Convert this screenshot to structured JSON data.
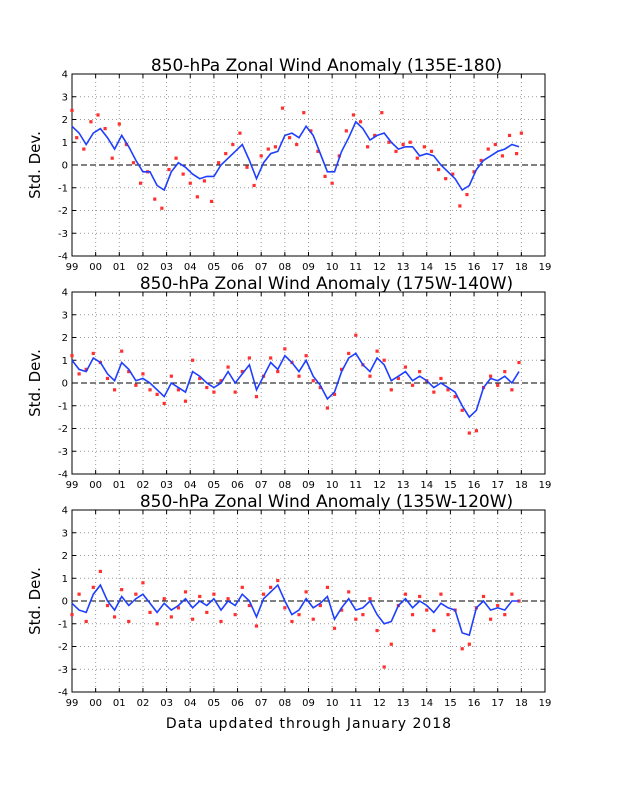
{
  "footer": "Data updated through January 2018",
  "colors": {
    "line": "#1f3fff",
    "points": "#ff3030",
    "grid": "#999999",
    "zero": "#000000"
  },
  "chart_data": [
    {
      "type": "scatter",
      "title": "850-hPa Zonal Wind Anomaly (135E-180)",
      "ylabel": "Std. Dev.",
      "xlabel": "",
      "xlim": [
        1999,
        2019
      ],
      "ylim": [
        -4,
        4
      ],
      "grid": true,
      "xticks": [
        "99",
        "00",
        "01",
        "02",
        "03",
        "04",
        "05",
        "06",
        "07",
        "08",
        "09",
        "10",
        "11",
        "12",
        "13",
        "14",
        "15",
        "16",
        "17",
        "18",
        "19"
      ],
      "yticks": [
        "-4",
        "-3",
        "-2",
        "-1",
        "0",
        "1",
        "2",
        "3",
        "4"
      ],
      "series": [
        {
          "kind": "points",
          "x": [
            1999.0,
            1999.2,
            1999.5,
            1999.8,
            2000.1,
            2000.4,
            2000.7,
            2001.0,
            2001.3,
            2001.6,
            2001.9,
            2002.2,
            2002.5,
            2002.8,
            2003.1,
            2003.4,
            2003.7,
            2004.0,
            2004.3,
            2004.6,
            2004.9,
            2005.2,
            2005.5,
            2005.8,
            2006.1,
            2006.4,
            2006.7,
            2007.0,
            2007.3,
            2007.6,
            2007.9,
            2008.2,
            2008.5,
            2008.8,
            2009.1,
            2009.4,
            2009.7,
            2010.0,
            2010.3,
            2010.6,
            2010.9,
            2011.2,
            2011.5,
            2011.8,
            2012.1,
            2012.4,
            2012.7,
            2013.0,
            2013.3,
            2013.6,
            2013.9,
            2014.2,
            2014.5,
            2014.8,
            2015.1,
            2015.4,
            2015.7,
            2016.0,
            2016.3,
            2016.6,
            2016.9,
            2017.2,
            2017.5,
            2017.8,
            2018.0
          ],
          "y": [
            2.4,
            1.2,
            0.7,
            1.9,
            2.2,
            1.6,
            0.3,
            1.8,
            0.9,
            0.1,
            -0.8,
            -0.3,
            -1.5,
            -1.9,
            -0.2,
            0.3,
            -0.4,
            -0.8,
            -1.4,
            -0.7,
            -1.6,
            0.1,
            0.5,
            0.9,
            1.4,
            -0.1,
            -0.9,
            0.4,
            0.7,
            0.8,
            2.5,
            1.2,
            0.9,
            2.3,
            1.5,
            0.6,
            -0.5,
            -0.8,
            0.4,
            1.5,
            2.2,
            1.9,
            0.8,
            1.3,
            2.3,
            1.0,
            0.6,
            0.9,
            1.0,
            0.3,
            0.8,
            0.6,
            -0.2,
            -0.6,
            -0.4,
            -1.8,
            -1.3,
            -0.3,
            0.2,
            0.7,
            0.9,
            0.4,
            1.3,
            0.5,
            1.4
          ]
        },
        {
          "kind": "line",
          "x": [
            1999.0,
            1999.3,
            1999.6,
            1999.9,
            2000.2,
            2000.5,
            2000.8,
            2001.1,
            2001.4,
            2001.7,
            2002.0,
            2002.3,
            2002.6,
            2002.9,
            2003.2,
            2003.5,
            2003.8,
            2004.1,
            2004.4,
            2004.7,
            2005.0,
            2005.3,
            2005.6,
            2005.9,
            2006.2,
            2006.5,
            2006.8,
            2007.1,
            2007.4,
            2007.7,
            2008.0,
            2008.3,
            2008.6,
            2008.9,
            2009.2,
            2009.5,
            2009.8,
            2010.1,
            2010.4,
            2010.7,
            2011.0,
            2011.3,
            2011.6,
            2011.9,
            2012.2,
            2012.5,
            2012.8,
            2013.1,
            2013.4,
            2013.7,
            2014.0,
            2014.3,
            2014.6,
            2014.9,
            2015.2,
            2015.5,
            2015.8,
            2016.1,
            2016.4,
            2016.7,
            2017.0,
            2017.3,
            2017.6,
            2017.9
          ],
          "y": [
            1.7,
            1.4,
            0.9,
            1.4,
            1.6,
            1.2,
            0.7,
            1.3,
            0.8,
            0.2,
            -0.3,
            -0.3,
            -0.9,
            -1.1,
            -0.3,
            0.1,
            -0.1,
            -0.4,
            -0.6,
            -0.5,
            -0.5,
            0.0,
            0.3,
            0.6,
            0.9,
            0.2,
            -0.6,
            0.1,
            0.5,
            0.6,
            1.3,
            1.4,
            1.2,
            1.7,
            1.3,
            0.5,
            -0.3,
            -0.3,
            0.6,
            1.2,
            1.9,
            1.6,
            1.1,
            1.3,
            1.4,
            1.0,
            0.7,
            0.8,
            0.8,
            0.4,
            0.5,
            0.4,
            0.0,
            -0.3,
            -0.6,
            -1.1,
            -0.9,
            -0.2,
            0.2,
            0.4,
            0.6,
            0.7,
            0.9,
            0.8
          ]
        }
      ]
    },
    {
      "type": "scatter",
      "title": "850-hPa Zonal Wind Anomaly (175W-140W)",
      "ylabel": "Std. Dev.",
      "xlabel": "",
      "xlim": [
        1999,
        2019
      ],
      "ylim": [
        -4,
        4
      ],
      "grid": true,
      "xticks": [
        "99",
        "00",
        "01",
        "02",
        "03",
        "04",
        "05",
        "06",
        "07",
        "08",
        "09",
        "10",
        "11",
        "12",
        "13",
        "14",
        "15",
        "16",
        "17",
        "18",
        "19"
      ],
      "yticks": [
        "-4",
        "-3",
        "-2",
        "-1",
        "0",
        "1",
        "2",
        "3",
        "4"
      ],
      "series": [
        {
          "kind": "points",
          "x": [
            1999.0,
            1999.3,
            1999.6,
            1999.9,
            2000.2,
            2000.5,
            2000.8,
            2001.1,
            2001.4,
            2001.7,
            2002.0,
            2002.3,
            2002.6,
            2002.9,
            2003.2,
            2003.5,
            2003.8,
            2004.1,
            2004.4,
            2004.7,
            2005.0,
            2005.3,
            2005.6,
            2005.9,
            2006.2,
            2006.5,
            2006.8,
            2007.1,
            2007.4,
            2007.7,
            2008.0,
            2008.3,
            2008.6,
            2008.9,
            2009.2,
            2009.5,
            2009.8,
            2010.1,
            2010.4,
            2010.7,
            2011.0,
            2011.3,
            2011.6,
            2011.9,
            2012.2,
            2012.5,
            2012.8,
            2013.1,
            2013.4,
            2013.7,
            2014.0,
            2014.3,
            2014.6,
            2014.9,
            2015.2,
            2015.5,
            2015.8,
            2016.1,
            2016.4,
            2016.7,
            2017.0,
            2017.3,
            2017.6,
            2017.9
          ],
          "y": [
            1.2,
            0.4,
            0.6,
            1.3,
            0.9,
            0.2,
            -0.3,
            1.4,
            0.5,
            -0.1,
            0.4,
            -0.3,
            -0.5,
            -0.9,
            0.3,
            -0.3,
            -0.8,
            1.0,
            0.2,
            -0.2,
            -0.4,
            0.1,
            0.7,
            -0.4,
            0.5,
            1.1,
            -0.6,
            0.3,
            1.1,
            0.5,
            1.5,
            0.9,
            0.3,
            1.2,
            0.1,
            -0.2,
            -1.1,
            -0.5,
            0.6,
            1.3,
            2.1,
            0.8,
            0.3,
            1.4,
            1.0,
            -0.3,
            0.2,
            0.7,
            -0.1,
            0.5,
            0.1,
            -0.4,
            0.2,
            -0.3,
            -0.6,
            -1.2,
            -2.2,
            -2.1,
            -0.2,
            0.3,
            -0.1,
            0.5,
            -0.3,
            0.9
          ]
        },
        {
          "kind": "line",
          "x": [
            1999.0,
            1999.3,
            1999.6,
            1999.9,
            2000.2,
            2000.5,
            2000.8,
            2001.1,
            2001.4,
            2001.7,
            2002.0,
            2002.3,
            2002.6,
            2002.9,
            2003.2,
            2003.5,
            2003.8,
            2004.1,
            2004.4,
            2004.7,
            2005.0,
            2005.3,
            2005.6,
            2005.9,
            2006.2,
            2006.5,
            2006.8,
            2007.1,
            2007.4,
            2007.7,
            2008.0,
            2008.3,
            2008.6,
            2008.9,
            2009.2,
            2009.5,
            2009.8,
            2010.1,
            2010.4,
            2010.7,
            2011.0,
            2011.3,
            2011.6,
            2011.9,
            2012.2,
            2012.5,
            2012.8,
            2013.1,
            2013.4,
            2013.7,
            2014.0,
            2014.3,
            2014.6,
            2014.9,
            2015.2,
            2015.5,
            2015.8,
            2016.1,
            2016.4,
            2016.7,
            2017.0,
            2017.3,
            2017.6,
            2017.9
          ],
          "y": [
            1.0,
            0.6,
            0.5,
            1.1,
            0.9,
            0.4,
            0.1,
            0.9,
            0.6,
            0.1,
            0.2,
            0.0,
            -0.3,
            -0.6,
            0.0,
            -0.2,
            -0.4,
            0.5,
            0.3,
            0.0,
            -0.2,
            0.0,
            0.5,
            0.0,
            0.4,
            0.8,
            -0.3,
            0.3,
            0.9,
            0.6,
            1.2,
            0.9,
            0.5,
            1.0,
            0.3,
            -0.1,
            -0.7,
            -0.4,
            0.5,
            1.1,
            1.3,
            0.8,
            0.5,
            1.1,
            0.8,
            0.1,
            0.3,
            0.5,
            0.1,
            0.3,
            0.1,
            -0.2,
            0.0,
            -0.2,
            -0.4,
            -1.0,
            -1.5,
            -1.2,
            -0.2,
            0.2,
            0.1,
            0.3,
            0.0,
            0.5
          ]
        }
      ]
    },
    {
      "type": "scatter",
      "title": "850-hPa Zonal Wind Anomaly (135W-120W)",
      "ylabel": "Std. Dev.",
      "xlabel": "",
      "xlim": [
        1999,
        2019
      ],
      "ylim": [
        -4,
        4
      ],
      "grid": true,
      "xticks": [
        "99",
        "00",
        "01",
        "02",
        "03",
        "04",
        "05",
        "06",
        "07",
        "08",
        "09",
        "10",
        "11",
        "12",
        "13",
        "14",
        "15",
        "16",
        "17",
        "18",
        "19"
      ],
      "yticks": [
        "-4",
        "-3",
        "-2",
        "-1",
        "0",
        "1",
        "2",
        "3",
        "4"
      ],
      "series": [
        {
          "kind": "points",
          "x": [
            1999.0,
            1999.3,
            1999.6,
            1999.9,
            2000.2,
            2000.5,
            2000.8,
            2001.1,
            2001.4,
            2001.7,
            2002.0,
            2002.3,
            2002.6,
            2002.9,
            2003.2,
            2003.5,
            2003.8,
            2004.1,
            2004.4,
            2004.7,
            2005.0,
            2005.3,
            2005.6,
            2005.9,
            2006.2,
            2006.5,
            2006.8,
            2007.1,
            2007.4,
            2007.7,
            2008.0,
            2008.3,
            2008.6,
            2008.9,
            2009.2,
            2009.5,
            2009.8,
            2010.1,
            2010.4,
            2010.7,
            2011.0,
            2011.3,
            2011.6,
            2011.9,
            2012.2,
            2012.5,
            2012.8,
            2013.1,
            2013.4,
            2013.7,
            2014.0,
            2014.3,
            2014.6,
            2014.9,
            2015.2,
            2015.5,
            2015.8,
            2016.1,
            2016.4,
            2016.7,
            2017.0,
            2017.3,
            2017.6,
            2017.9
          ],
          "y": [
            -0.6,
            0.3,
            -0.9,
            0.6,
            1.3,
            -0.2,
            -0.7,
            0.5,
            -0.9,
            0.3,
            0.8,
            -0.5,
            -1.0,
            0.1,
            -0.7,
            -0.3,
            0.4,
            -0.8,
            0.2,
            -0.5,
            0.3,
            -0.9,
            0.1,
            -0.6,
            0.6,
            -0.2,
            -1.1,
            0.3,
            0.6,
            0.9,
            -0.3,
            -0.9,
            -0.6,
            0.4,
            -0.8,
            -0.2,
            0.6,
            -1.2,
            -0.4,
            0.4,
            -0.8,
            -0.6,
            0.1,
            -1.3,
            -2.9,
            -1.9,
            -0.2,
            0.3,
            -0.6,
            0.2,
            -0.4,
            -1.3,
            0.3,
            -0.6,
            -0.4,
            -2.1,
            -1.9,
            -0.3,
            0.2,
            -0.8,
            -0.2,
            -0.6,
            0.3,
            0.0
          ]
        },
        {
          "kind": "line",
          "x": [
            1999.0,
            1999.3,
            1999.6,
            1999.9,
            2000.2,
            2000.5,
            2000.8,
            2001.1,
            2001.4,
            2001.7,
            2002.0,
            2002.3,
            2002.6,
            2002.9,
            2003.2,
            2003.5,
            2003.8,
            2004.1,
            2004.4,
            2004.7,
            2005.0,
            2005.3,
            2005.6,
            2005.9,
            2006.2,
            2006.5,
            2006.8,
            2007.1,
            2007.4,
            2007.7,
            2008.0,
            2008.3,
            2008.6,
            2008.9,
            2009.2,
            2009.5,
            2009.8,
            2010.1,
            2010.4,
            2010.7,
            2011.0,
            2011.3,
            2011.6,
            2011.9,
            2012.2,
            2012.5,
            2012.8,
            2013.1,
            2013.4,
            2013.7,
            2014.0,
            2014.3,
            2014.6,
            2014.9,
            2015.2,
            2015.5,
            2015.8,
            2016.1,
            2016.4,
            2016.7,
            2017.0,
            2017.3,
            2017.6,
            2017.9
          ],
          "y": [
            -0.1,
            -0.4,
            -0.5,
            0.3,
            0.7,
            0.0,
            -0.4,
            0.2,
            -0.2,
            0.1,
            0.3,
            -0.1,
            -0.5,
            -0.1,
            -0.4,
            -0.2,
            0.1,
            -0.3,
            0.0,
            -0.2,
            0.1,
            -0.4,
            0.0,
            -0.2,
            0.3,
            0.0,
            -0.7,
            0.1,
            0.4,
            0.7,
            0.0,
            -0.6,
            -0.4,
            0.1,
            -0.3,
            -0.1,
            0.2,
            -0.8,
            -0.3,
            0.1,
            -0.4,
            -0.3,
            0.0,
            -0.6,
            -1.0,
            -0.9,
            -0.2,
            0.1,
            -0.3,
            0.0,
            -0.2,
            -0.5,
            -0.1,
            -0.3,
            -0.4,
            -1.4,
            -1.5,
            -0.3,
            0.0,
            -0.4,
            -0.3,
            -0.4,
            0.0,
            0.0
          ]
        }
      ]
    }
  ]
}
